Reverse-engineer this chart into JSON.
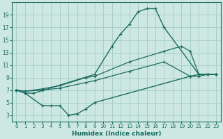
{
  "xlabel": "Humidex (Indice chaleur)",
  "background_color": "#cde8e2",
  "grid_color": "#a8cfc8",
  "line_color": "#1a6b60",
  "curve_top": {
    "x": [
      0,
      1,
      2,
      9,
      11,
      12,
      13,
      14,
      15,
      16,
      17,
      21,
      22,
      23
    ],
    "y": [
      7,
      6.5,
      6.5,
      9.5,
      14.0,
      16.0,
      17.5,
      19.5,
      20.0,
      20.0,
      17.0,
      9.5,
      9.5,
      9.5
    ]
  },
  "curve_bot": {
    "x": [
      0,
      1,
      3,
      4,
      5,
      6,
      7,
      8,
      9,
      20,
      21,
      22,
      23
    ],
    "y": [
      7,
      6.5,
      4.5,
      4.5,
      4.5,
      3.0,
      3.2,
      4.0,
      5.0,
      9.2,
      9.5,
      9.5,
      9.5
    ]
  },
  "curve_mid_upper": {
    "x": [
      0,
      1,
      3,
      5,
      8,
      9,
      13,
      17,
      19,
      20,
      21,
      22,
      23
    ],
    "y": [
      7.0,
      6.8,
      7.2,
      7.7,
      9.0,
      9.2,
      11.5,
      13.2,
      14.0,
      13.2,
      9.5,
      9.5,
      9.5
    ]
  },
  "curve_mid_lower": {
    "x": [
      0,
      1,
      3,
      5,
      8,
      9,
      13,
      17,
      20,
      21,
      22,
      23
    ],
    "y": [
      7.0,
      6.8,
      7.0,
      7.3,
      8.2,
      8.5,
      10.0,
      11.5,
      9.2,
      9.2,
      9.5,
      9.5
    ]
  },
  "xlim": [
    -0.5,
    23.5
  ],
  "ylim": [
    2.0,
    21.0
  ],
  "yticks": [
    3,
    5,
    7,
    9,
    11,
    13,
    15,
    17,
    19
  ],
  "xticks": [
    0,
    1,
    2,
    3,
    4,
    5,
    6,
    7,
    8,
    9,
    10,
    11,
    12,
    13,
    14,
    15,
    16,
    17,
    18,
    19,
    20,
    21,
    22,
    23
  ]
}
